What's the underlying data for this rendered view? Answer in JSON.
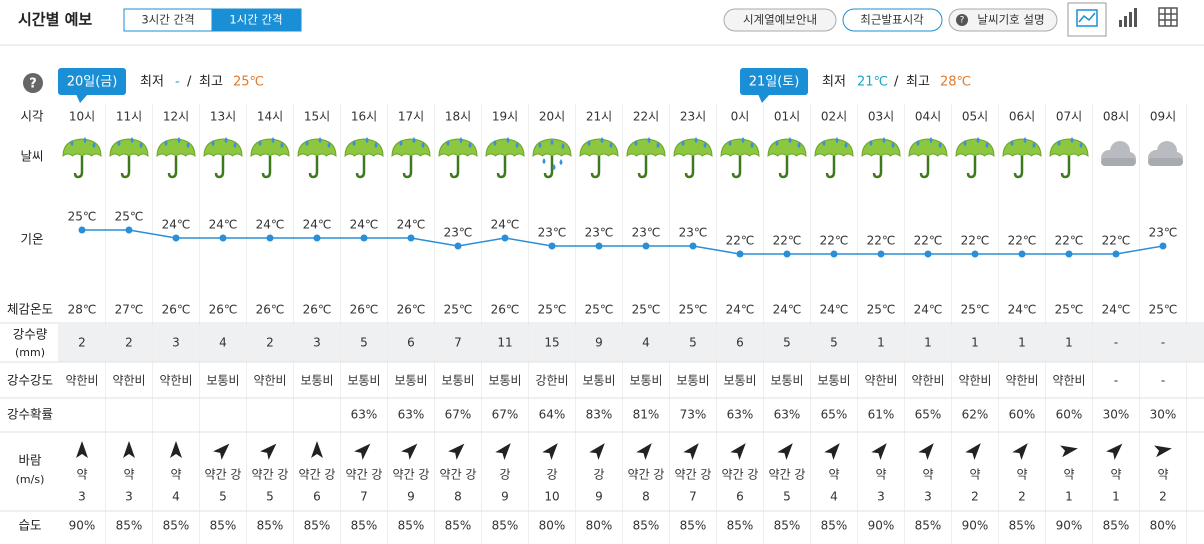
{
  "header": {
    "title": "시간별 예보",
    "tabs": [
      "3시간 간격",
      "1시간 간격"
    ],
    "buttons": [
      "시계열예보안내",
      "최근발표시각",
      "날씨기호 설명"
    ],
    "help_icon": "?"
  },
  "days": [
    {
      "label": "20일(금)",
      "min_label": "최저",
      "min": "-",
      "sep": "/",
      "max_label": "최고",
      "max": "25℃"
    },
    {
      "label": "21일(토)",
      "min_label": "최저",
      "min": "21℃",
      "sep": "/",
      "max_label": "최고",
      "max": "28℃"
    }
  ],
  "row_labels": {
    "time": "시각",
    "weather": "날씨",
    "temp": "기온",
    "feels": "체감온도",
    "precip": [
      "강수량",
      "(mm)"
    ],
    "intensity": "강수강도",
    "prob": "강수확률",
    "wind": [
      "바람",
      "(m/s)"
    ],
    "humidity": "습도"
  },
  "hours": {
    "times": [
      "10시",
      "11시",
      "12시",
      "13시",
      "14시",
      "15시",
      "16시",
      "17시",
      "18시",
      "19시",
      "20시",
      "21시",
      "22시",
      "23시",
      "0시",
      "01시",
      "02시",
      "03시",
      "04시",
      "05시",
      "06시",
      "07시",
      "08시",
      "09시"
    ],
    "weather": [
      "rain",
      "rain",
      "rain",
      "rain",
      "rain",
      "rain",
      "rain",
      "rain",
      "rain",
      "rain",
      "heavy-rain",
      "rain",
      "rain",
      "rain",
      "rain",
      "rain",
      "rain",
      "rain",
      "rain",
      "rain",
      "rain",
      "rain",
      "cloudy",
      "cloudy"
    ],
    "temps": [
      25,
      25,
      24,
      24,
      24,
      24,
      24,
      24,
      23,
      24,
      23,
      23,
      23,
      23,
      22,
      22,
      22,
      22,
      22,
      22,
      22,
      22,
      22,
      23
    ],
    "temp_labels": [
      "25℃",
      "25℃",
      "24℃",
      "24℃",
      "24℃",
      "24℃",
      "24℃",
      "24℃",
      "23℃",
      "24℃",
      "23℃",
      "23℃",
      "23℃",
      "23℃",
      "22℃",
      "22℃",
      "22℃",
      "22℃",
      "22℃",
      "22℃",
      "22℃",
      "22℃",
      "22℃",
      "23℃"
    ],
    "feels": [
      "28℃",
      "27℃",
      "26℃",
      "26℃",
      "26℃",
      "26℃",
      "26℃",
      "26℃",
      "25℃",
      "26℃",
      "25℃",
      "25℃",
      "25℃",
      "25℃",
      "24℃",
      "24℃",
      "24℃",
      "25℃",
      "24℃",
      "25℃",
      "24℃",
      "25℃",
      "24℃",
      "25℃"
    ],
    "precip": [
      2,
      2,
      3,
      4,
      2,
      3,
      5,
      6,
      7,
      11,
      15,
      9,
      4,
      5,
      6,
      5,
      5,
      1,
      1,
      1,
      1,
      1,
      "-",
      "-"
    ],
    "intensity": [
      "약한비",
      "약한비",
      "약한비",
      "보통비",
      "약한비",
      "보통비",
      "보통비",
      "보통비",
      "보통비",
      "보통비",
      "강한비",
      "보통비",
      "보통비",
      "보통비",
      "보통비",
      "보통비",
      "보통비",
      "약한비",
      "약한비",
      "약한비",
      "약한비",
      "약한비",
      "-",
      "-"
    ],
    "prob": [
      null,
      null,
      null,
      null,
      null,
      null,
      "63%",
      "63%",
      "67%",
      "67%",
      "64%",
      "83%",
      "81%",
      "73%",
      "63%",
      "63%",
      "65%",
      "61%",
      "65%",
      "62%",
      "60%",
      "60%",
      "30%",
      "30%"
    ],
    "wind_dir": [
      0,
      0,
      0,
      45,
      45,
      0,
      45,
      45,
      45,
      40,
      40,
      40,
      40,
      40,
      40,
      40,
      40,
      40,
      40,
      40,
      40,
      80,
      45,
      80
    ],
    "wind_strength": [
      "약",
      "약",
      "약",
      "약간 강",
      "약간 강",
      "약간 강",
      "약간 강",
      "약간 강",
      "약간 강",
      "강",
      "강",
      "강",
      "약간 강",
      "약간 강",
      "약간 강",
      "약간 강",
      "약",
      "약",
      "약",
      "약",
      "약",
      "약",
      "약",
      "약"
    ],
    "wind_speed": [
      3,
      3,
      4,
      5,
      5,
      6,
      7,
      9,
      8,
      9,
      10,
      9,
      8,
      7,
      6,
      5,
      4,
      3,
      3,
      2,
      2,
      1,
      1,
      2
    ],
    "humidity": [
      "90%",
      "85%",
      "85%",
      "85%",
      "85%",
      "85%",
      "85%",
      "85%",
      "85%",
      "85%",
      "80%",
      "80%",
      "85%",
      "85%",
      "85%",
      "85%",
      "85%",
      "90%",
      "85%",
      "90%",
      "85%",
      "90%",
      "85%",
      "80%"
    ]
  }
}
